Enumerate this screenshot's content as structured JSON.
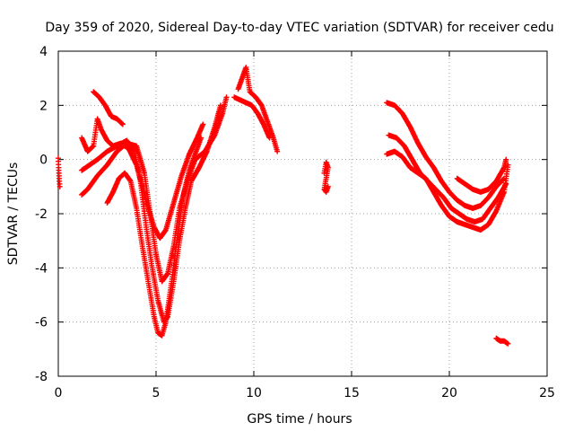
{
  "chart_data": {
    "type": "scatter",
    "title": "Day 359 of 2020, Sidereal Day-to-day VTEC variation (SDTVAR) for receiver cedu",
    "xlabel": "GPS time / hours",
    "ylabel": "SDTVAR / TECUs",
    "xlim": [
      0,
      25
    ],
    "ylim": [
      -8,
      4
    ],
    "xticks": [
      0,
      5,
      10,
      15,
      20,
      25
    ],
    "yticks": [
      -8,
      -6,
      -4,
      -2,
      0,
      2,
      4
    ],
    "grid": true,
    "marker": "+",
    "color": "#ff0000",
    "tracks": [
      [
        [
          0.0,
          0.05
        ],
        [
          0.02,
          -0.3
        ],
        [
          0.05,
          -0.8
        ],
        [
          0.08,
          -1.0
        ]
      ],
      [
        [
          1.2,
          -1.3
        ],
        [
          1.5,
          -1.1
        ],
        [
          2.0,
          -0.6
        ],
        [
          2.5,
          -0.2
        ],
        [
          3.0,
          0.3
        ],
        [
          3.5,
          0.6
        ],
        [
          4.0,
          0.5
        ],
        [
          4.4,
          -0.5
        ],
        [
          4.7,
          -2.0
        ],
        [
          5.0,
          -3.5
        ],
        [
          5.3,
          -4.5
        ],
        [
          5.6,
          -4.2
        ],
        [
          5.9,
          -3.2
        ],
        [
          6.2,
          -1.8
        ],
        [
          6.6,
          -0.8
        ],
        [
          7.0,
          0.0
        ],
        [
          7.5,
          0.3
        ],
        [
          8.0,
          0.9
        ],
        [
          8.4,
          1.7
        ],
        [
          8.6,
          2.3
        ]
      ],
      [
        [
          1.2,
          -0.4
        ],
        [
          1.6,
          -0.2
        ],
        [
          2.0,
          0.0
        ],
        [
          2.5,
          0.3
        ],
        [
          3.0,
          0.5
        ],
        [
          3.5,
          0.7
        ],
        [
          3.9,
          0.3
        ],
        [
          4.2,
          -0.8
        ],
        [
          4.5,
          -2.5
        ],
        [
          4.8,
          -4.0
        ],
        [
          5.1,
          -5.2
        ],
        [
          5.4,
          -6.0
        ],
        [
          5.6,
          -5.8
        ],
        [
          5.9,
          -4.5
        ],
        [
          6.2,
          -3.0
        ],
        [
          6.5,
          -1.8
        ],
        [
          6.8,
          -0.8
        ],
        [
          7.2,
          -0.3
        ],
        [
          7.6,
          0.3
        ],
        [
          8.0,
          1.2
        ],
        [
          8.3,
          2.0
        ]
      ],
      [
        [
          2.5,
          -1.6
        ],
        [
          2.8,
          -1.2
        ],
        [
          3.1,
          -0.7
        ],
        [
          3.4,
          -0.5
        ],
        [
          3.7,
          -0.8
        ],
        [
          4.0,
          -1.8
        ],
        [
          4.3,
          -3.2
        ],
        [
          4.6,
          -4.5
        ],
        [
          4.9,
          -5.8
        ],
        [
          5.1,
          -6.4
        ],
        [
          5.3,
          -6.5
        ],
        [
          5.5,
          -6.0
        ],
        [
          5.8,
          -4.5
        ],
        [
          6.1,
          -2.8
        ],
        [
          6.4,
          -1.3
        ],
        [
          6.7,
          -0.4
        ],
        [
          7.0,
          0.2
        ],
        [
          7.3,
          0.8
        ]
      ],
      [
        [
          1.2,
          0.8
        ],
        [
          1.5,
          0.3
        ],
        [
          1.8,
          0.5
        ],
        [
          2.0,
          1.5
        ],
        [
          2.2,
          1.1
        ],
        [
          2.5,
          0.7
        ],
        [
          2.8,
          0.5
        ],
        [
          3.2,
          0.6
        ],
        [
          3.6,
          0.4
        ],
        [
          4.0,
          -0.2
        ],
        [
          4.3,
          -1.0
        ],
        [
          4.6,
          -1.8
        ],
        [
          4.9,
          -2.5
        ],
        [
          5.2,
          -2.9
        ],
        [
          5.5,
          -2.6
        ],
        [
          5.9,
          -1.6
        ],
        [
          6.3,
          -0.6
        ],
        [
          6.7,
          0.2
        ],
        [
          7.1,
          0.8
        ],
        [
          7.4,
          1.3
        ]
      ],
      [
        [
          1.8,
          2.5
        ],
        [
          2.1,
          2.3
        ],
        [
          2.4,
          2.0
        ],
        [
          2.7,
          1.6
        ],
        [
          3.0,
          1.5
        ],
        [
          3.3,
          1.3
        ]
      ],
      [
        [
          9.2,
          2.6
        ],
        [
          9.4,
          3.0
        ],
        [
          9.6,
          3.4
        ],
        [
          9.8,
          2.5
        ],
        [
          10.1,
          2.3
        ],
        [
          10.4,
          2.0
        ],
        [
          10.7,
          1.4
        ],
        [
          11.0,
          0.8
        ],
        [
          11.2,
          0.3
        ]
      ],
      [
        [
          9.0,
          2.3
        ],
        [
          9.3,
          2.2
        ],
        [
          9.6,
          2.1
        ],
        [
          9.9,
          2.0
        ],
        [
          10.2,
          1.7
        ],
        [
          10.5,
          1.3
        ],
        [
          10.8,
          0.8
        ]
      ],
      [
        [
          13.6,
          -0.5
        ],
        [
          13.7,
          -0.1
        ],
        [
          13.8,
          -0.3
        ],
        [
          13.6,
          -1.1
        ],
        [
          13.7,
          -1.2
        ],
        [
          13.8,
          -1.0
        ]
      ],
      [
        [
          16.8,
          2.1
        ],
        [
          17.2,
          2.0
        ],
        [
          17.6,
          1.7
        ],
        [
          18.0,
          1.2
        ],
        [
          18.4,
          0.6
        ],
        [
          18.8,
          0.1
        ],
        [
          19.2,
          -0.3
        ],
        [
          19.6,
          -0.8
        ],
        [
          20.0,
          -1.2
        ],
        [
          20.4,
          -1.5
        ],
        [
          20.8,
          -1.7
        ],
        [
          21.2,
          -1.8
        ],
        [
          21.6,
          -1.7
        ],
        [
          22.0,
          -1.4
        ],
        [
          22.4,
          -1.0
        ],
        [
          22.8,
          -0.7
        ]
      ],
      [
        [
          16.9,
          0.9
        ],
        [
          17.3,
          0.8
        ],
        [
          17.7,
          0.5
        ],
        [
          18.1,
          0.0
        ],
        [
          18.5,
          -0.5
        ],
        [
          18.9,
          -0.8
        ],
        [
          19.3,
          -1.1
        ],
        [
          19.7,
          -1.4
        ],
        [
          20.1,
          -1.8
        ],
        [
          20.5,
          -2.0
        ],
        [
          20.9,
          -2.2
        ],
        [
          21.3,
          -2.3
        ],
        [
          21.7,
          -2.2
        ],
        [
          22.1,
          -1.8
        ],
        [
          22.5,
          -1.4
        ],
        [
          22.9,
          -0.9
        ]
      ],
      [
        [
          16.8,
          0.2
        ],
        [
          17.2,
          0.3
        ],
        [
          17.6,
          0.1
        ],
        [
          18.0,
          -0.3
        ],
        [
          18.4,
          -0.5
        ],
        [
          18.8,
          -0.7
        ],
        [
          19.2,
          -1.2
        ],
        [
          19.6,
          -1.7
        ],
        [
          20.0,
          -2.1
        ],
        [
          20.4,
          -2.3
        ],
        [
          20.8,
          -2.4
        ],
        [
          21.2,
          -2.5
        ],
        [
          21.6,
          -2.6
        ],
        [
          22.0,
          -2.4
        ],
        [
          22.4,
          -1.9
        ],
        [
          22.8,
          -1.2
        ],
        [
          23.0,
          -0.2
        ]
      ],
      [
        [
          20.4,
          -0.7
        ],
        [
          20.8,
          -0.9
        ],
        [
          21.2,
          -1.1
        ],
        [
          21.6,
          -1.2
        ],
        [
          22.0,
          -1.1
        ],
        [
          22.4,
          -0.8
        ],
        [
          22.8,
          -0.3
        ],
        [
          22.9,
          0.0
        ]
      ],
      [
        [
          22.4,
          -6.6
        ],
        [
          22.6,
          -6.7
        ],
        [
          22.8,
          -6.7
        ],
        [
          23.0,
          -6.8
        ]
      ]
    ]
  }
}
